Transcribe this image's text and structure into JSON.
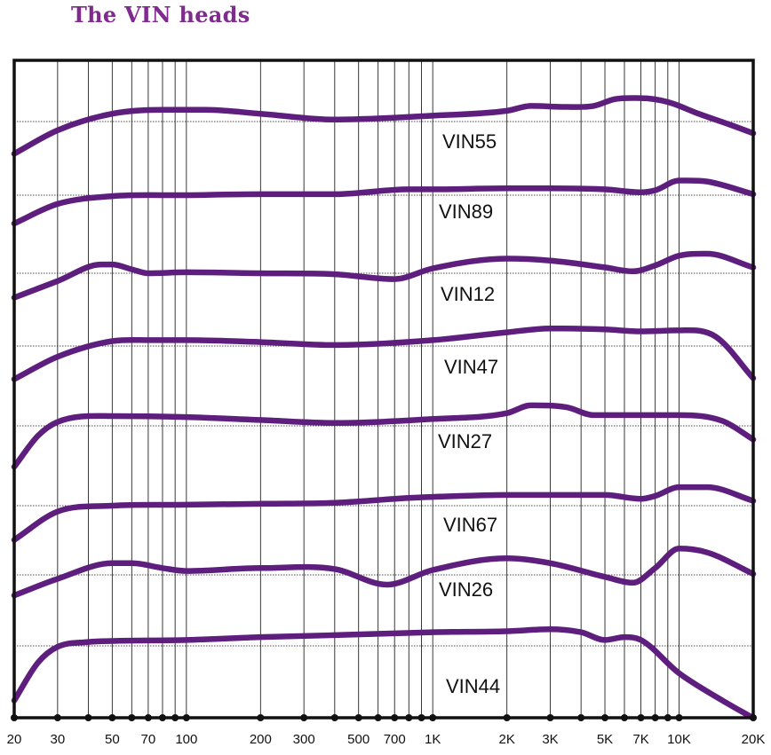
{
  "chart_data": {
    "type": "line",
    "title": "The VIN heads",
    "xlabel": "",
    "ylabel": "",
    "x_scale": "log",
    "xlim": [
      20,
      20000
    ],
    "x_ticks": [
      20,
      30,
      40,
      50,
      60,
      70,
      80,
      90,
      100,
      200,
      300,
      400,
      500,
      600,
      700,
      800,
      900,
      1000,
      2000,
      3000,
      4000,
      5000,
      6000,
      7000,
      8000,
      9000,
      10000,
      20000
    ],
    "x_tick_labels": [
      {
        "x": 20,
        "label": "20"
      },
      {
        "x": 30,
        "label": "30"
      },
      {
        "x": 50,
        "label": "50"
      },
      {
        "x": 70,
        "label": "70"
      },
      {
        "x": 100,
        "label": "100"
      },
      {
        "x": 200,
        "label": "200"
      },
      {
        "x": 300,
        "label": "300"
      },
      {
        "x": 500,
        "label": "500"
      },
      {
        "x": 700,
        "label": "700"
      },
      {
        "x": 1000,
        "label": "1K"
      },
      {
        "x": 2000,
        "label": "2K"
      },
      {
        "x": 3000,
        "label": "3K"
      },
      {
        "x": 5000,
        "label": "5K"
      },
      {
        "x": 7000,
        "label": "7K"
      },
      {
        "x": 10000,
        "label": "10K"
      },
      {
        "x": 20000,
        "label": "20K"
      }
    ],
    "y_units": "relative offset per trace (reference line = 0)",
    "grid": true,
    "color": "#5e1e7e",
    "series": [
      {
        "name": "VIN55",
        "x": [
          20,
          30,
          50,
          80,
          120,
          200,
          400,
          1000,
          2000,
          2500,
          3500,
          4500,
          5500,
          7000,
          9000,
          12000,
          16000,
          20000
        ],
        "y": [
          -3.3,
          -0.9,
          0.8,
          1.2,
          1.2,
          0.8,
          0.2,
          0.6,
          1.1,
          1.6,
          1.5,
          1.6,
          2.3,
          2.4,
          2.0,
          0.8,
          -0.3,
          -1.2
        ]
      },
      {
        "name": "VIN89",
        "x": [
          20,
          30,
          50,
          100,
          200,
          400,
          800,
          1000,
          2000,
          3000,
          5000,
          7000,
          8000,
          10000,
          13000,
          20000
        ],
        "y": [
          -2.9,
          -0.9,
          -0.1,
          0.0,
          0.1,
          0.1,
          0.6,
          0.6,
          0.7,
          0.7,
          0.6,
          0.3,
          0.5,
          1.5,
          1.4,
          0.1
        ]
      },
      {
        "name": "VIN12",
        "x": [
          20,
          30,
          45,
          50,
          60,
          70,
          100,
          200,
          400,
          700,
          1000,
          2000,
          3000,
          5000,
          6500,
          8000,
          10000,
          13000,
          20000
        ],
        "y": [
          -2.5,
          -0.8,
          0.9,
          0.9,
          0.4,
          0.0,
          0.1,
          0.0,
          -0.1,
          -0.6,
          0.5,
          1.5,
          1.3,
          0.6,
          0.2,
          0.8,
          1.8,
          2.0,
          0.6
        ]
      },
      {
        "name": "VIN47",
        "x": [
          20,
          30,
          50,
          70,
          100,
          200,
          400,
          1000,
          2000,
          3000,
          5000,
          7000,
          10000,
          14000,
          20000
        ],
        "y": [
          -3.4,
          -1.1,
          0.5,
          0.6,
          0.6,
          0.4,
          0.1,
          0.6,
          1.4,
          1.8,
          1.7,
          1.5,
          1.6,
          1.0,
          -3.3
        ]
      },
      {
        "name": "VIN27",
        "x": [
          20,
          25,
          30,
          50,
          100,
          200,
          400,
          1000,
          2000,
          2500,
          3500,
          4500,
          7000,
          10000,
          15000,
          20000
        ],
        "y": [
          -4.2,
          -1.0,
          0.4,
          1.0,
          0.9,
          0.6,
          0.3,
          0.7,
          1.3,
          2.1,
          1.9,
          1.1,
          1.1,
          1.1,
          0.5,
          -1.4
        ]
      },
      {
        "name": "VIN67",
        "x": [
          20,
          30,
          50,
          100,
          200,
          400,
          800,
          1000,
          2000,
          3000,
          5000,
          7000,
          8000,
          10000,
          13000,
          20000
        ],
        "y": [
          -3.5,
          -0.6,
          0.0,
          0.1,
          0.2,
          0.3,
          0.8,
          0.9,
          1.1,
          1.1,
          1.1,
          0.7,
          1.0,
          1.9,
          1.9,
          0.5
        ]
      },
      {
        "name": "VIN26",
        "x": [
          20,
          30,
          50,
          60,
          80,
          100,
          200,
          400,
          650,
          1000,
          2000,
          3000,
          5000,
          6500,
          8000,
          10000,
          13000,
          20000
        ],
        "y": [
          -2.1,
          -0.4,
          1.2,
          1.2,
          0.7,
          0.4,
          0.7,
          0.6,
          -1.0,
          0.5,
          1.7,
          1.2,
          -0.2,
          -0.8,
          0.7,
          2.7,
          2.3,
          0.1
        ]
      },
      {
        "name": "VIN44",
        "x": [
          20,
          25,
          30,
          40,
          50,
          100,
          200,
          400,
          1000,
          2000,
          3000,
          4000,
          5000,
          6000,
          7000,
          10000,
          15000,
          20000
        ],
        "y": [
          -5.6,
          -1.7,
          -0.1,
          0.4,
          0.5,
          0.6,
          0.9,
          1.1,
          1.4,
          1.5,
          1.7,
          1.4,
          0.6,
          0.9,
          0.6,
          -2.8,
          -5.6,
          -7.4
        ]
      }
    ]
  }
}
